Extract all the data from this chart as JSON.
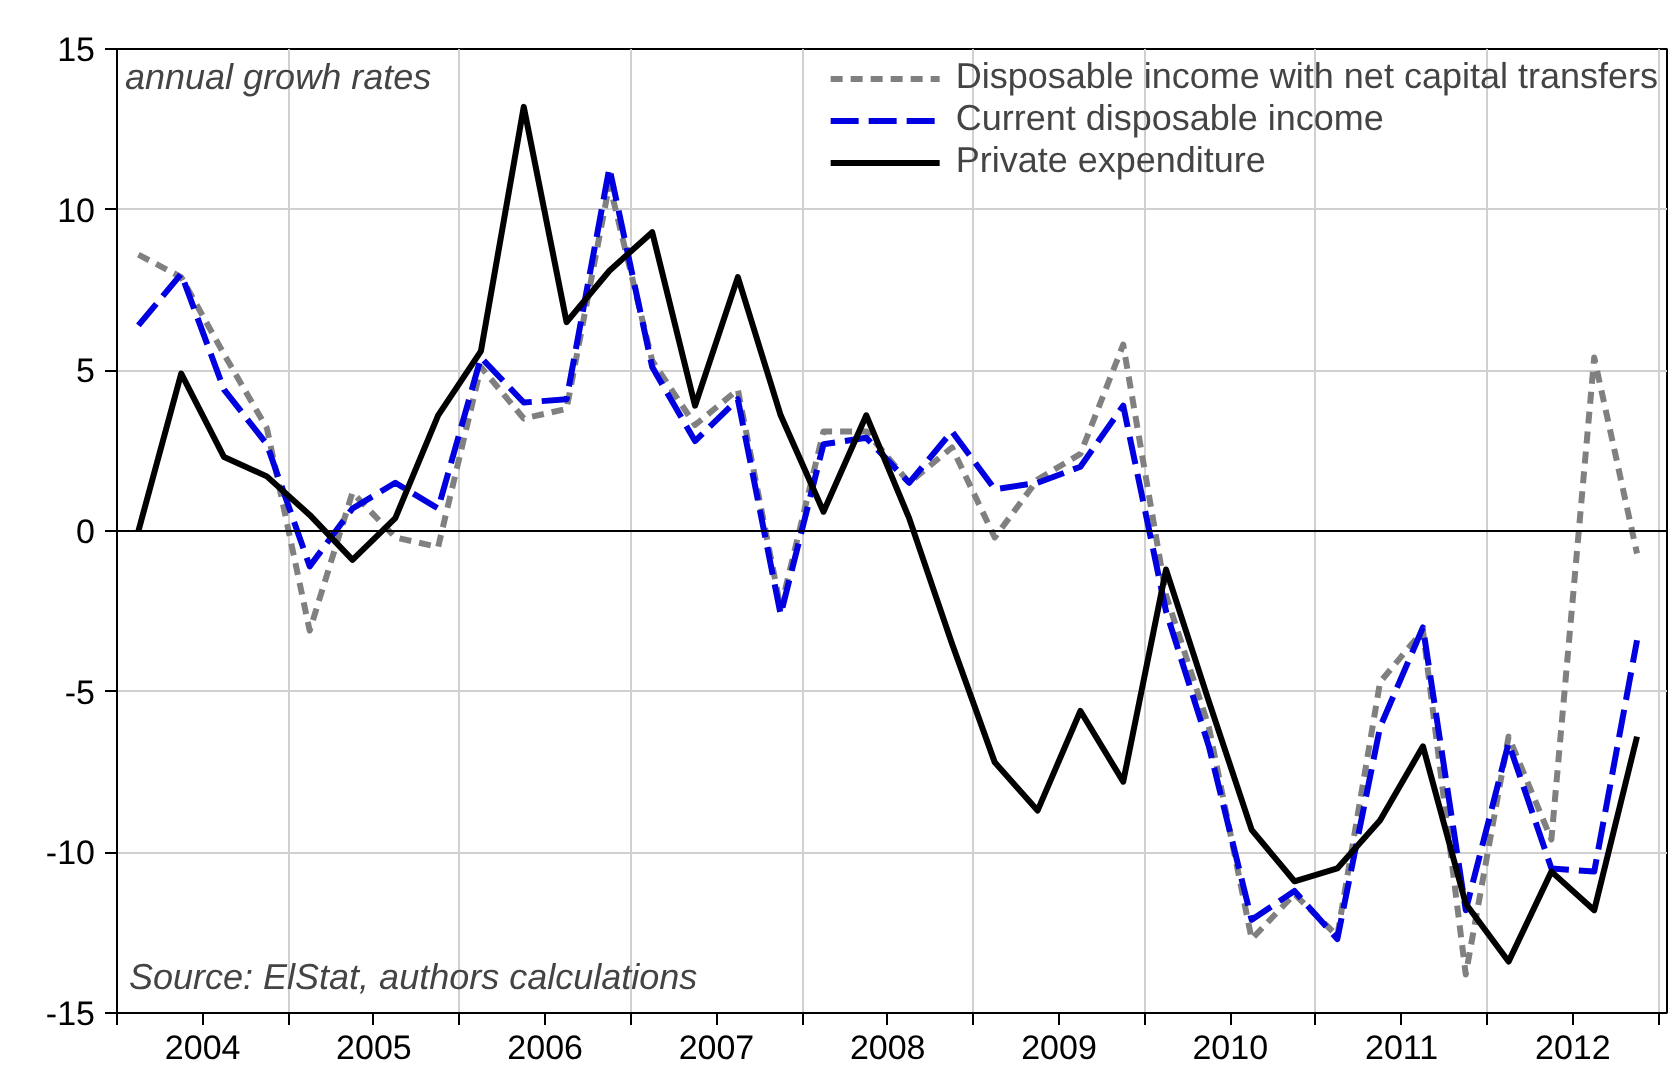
{
  "chart_data": {
    "type": "line",
    "x": [
      2004.125,
      2004.375,
      2004.625,
      2004.875,
      2005.125,
      2005.375,
      2005.625,
      2005.875,
      2006.125,
      2006.375,
      2006.625,
      2006.875,
      2007.125,
      2007.375,
      2007.625,
      2007.875,
      2008.125,
      2008.375,
      2008.625,
      2008.875,
      2009.125,
      2009.375,
      2009.625,
      2009.875,
      2010.125,
      2010.375,
      2010.625,
      2010.875,
      2011.125,
      2011.375,
      2011.625,
      2011.875,
      2012.125,
      2012.375,
      2012.625,
      2012.875
    ],
    "series": [
      {
        "name": "Disposable income with net capital transfers",
        "color": "#808080",
        "line_style": "dotted",
        "values": [
          8.6,
          7.9,
          5.5,
          3.2,
          -3.1,
          1.2,
          -0.2,
          -0.5,
          5.1,
          3.5,
          3.8,
          10.8,
          5.3,
          3.3,
          4.4,
          -2.4,
          3.1,
          3.1,
          1.5,
          2.6,
          -0.2,
          1.6,
          2.4,
          5.8,
          -2.0,
          -6.1,
          -12.7,
          -11.3,
          -12.6,
          -4.7,
          -3.1,
          -13.8,
          -6.4,
          -9.6,
          5.4,
          -0.7
        ]
      },
      {
        "name": "Current disposable income",
        "color": "#0000e0",
        "line_style": "dashed",
        "values": [
          6.4,
          8.0,
          4.4,
          2.7,
          -1.1,
          0.7,
          1.5,
          0.7,
          5.4,
          4.0,
          4.1,
          11.3,
          5.1,
          2.8,
          4.1,
          -2.6,
          2.7,
          2.9,
          1.5,
          3.1,
          1.3,
          1.5,
          2.0,
          3.9,
          -2.5,
          -6.7,
          -12.1,
          -11.2,
          -12.7,
          -6.1,
          -3.0,
          -11.8,
          -6.6,
          -10.5,
          -10.6,
          -3.4
        ]
      },
      {
        "name": "Private expenditure",
        "color": "#000000",
        "line_style": "solid",
        "values": [
          0.0,
          4.9,
          2.3,
          1.7,
          0.5,
          -0.9,
          0.4,
          3.6,
          5.6,
          13.2,
          6.5,
          8.1,
          9.3,
          3.9,
          7.9,
          3.6,
          0.6,
          3.6,
          0.4,
          -3.5,
          -7.2,
          -8.7,
          -5.6,
          -7.8,
          -1.2,
          -5.3,
          -9.3,
          -10.9,
          -10.5,
          -9.0,
          -6.7,
          -11.6,
          -13.4,
          -10.6,
          -11.8,
          -6.4
        ]
      }
    ],
    "xlim": [
      2004,
      2013.05
    ],
    "xticks": [
      {
        "value": 2004,
        "label": null
      },
      {
        "value": 2004.5,
        "label": "2004"
      },
      {
        "value": 2005,
        "label": null
      },
      {
        "value": 2005.5,
        "label": "2005"
      },
      {
        "value": 2006,
        "label": null
      },
      {
        "value": 2006.5,
        "label": "2006"
      },
      {
        "value": 2007,
        "label": null
      },
      {
        "value": 2007.5,
        "label": "2007"
      },
      {
        "value": 2008,
        "label": null
      },
      {
        "value": 2008.5,
        "label": "2008"
      },
      {
        "value": 2009,
        "label": null
      },
      {
        "value": 2009.5,
        "label": "2009"
      },
      {
        "value": 2010,
        "label": null
      },
      {
        "value": 2010.5,
        "label": "2010"
      },
      {
        "value": 2011,
        "label": null
      },
      {
        "value": 2011.5,
        "label": "2011"
      },
      {
        "value": 2012,
        "label": null
      },
      {
        "value": 2012.5,
        "label": "2012"
      },
      {
        "value": 2013,
        "label": null
      }
    ],
    "ylim": [
      -15,
      15
    ],
    "yticks": [
      -15,
      -10,
      -5,
      0,
      5,
      10,
      15
    ],
    "ref_lines": [
      {
        "axis": "y",
        "value": 0,
        "color": "#000000"
      }
    ],
    "annotations": [
      "annual growh rates",
      "Source: ElStat, authors calculations"
    ],
    "grid": true,
    "legend": "top right"
  }
}
